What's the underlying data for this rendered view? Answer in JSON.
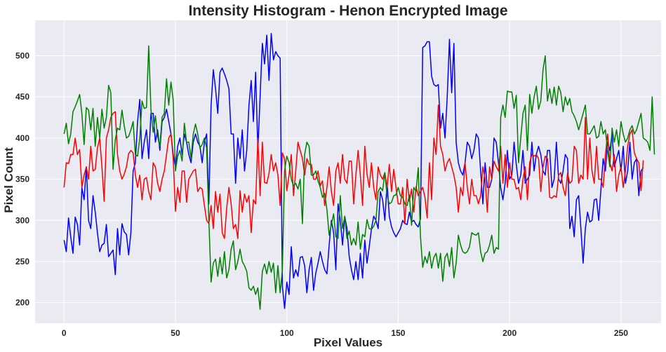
{
  "chart_data": {
    "type": "line",
    "title": "Intensity Histogram - Henon Encrypted Image",
    "xlabel": "Pixel Values",
    "ylabel": "Pixel Count",
    "xlim": [
      -13,
      268
    ],
    "ylim": [
      175,
      543
    ],
    "xticks": [
      0,
      50,
      100,
      150,
      200,
      250
    ],
    "yticks": [
      200,
      250,
      300,
      350,
      400,
      450,
      500
    ],
    "grid": true,
    "background": "#EAEAF2",
    "series": [
      {
        "color": "#0000FF",
        "values": [
          276,
          262,
          303,
          280,
          260,
          304,
          295,
          270,
          340,
          325,
          365,
          300,
          290,
          330,
          310,
          285,
          262,
          270,
          272,
          295,
          256,
          260,
          264,
          234,
          290,
          258,
          296,
          286,
          283,
          258,
          285,
          360,
          370,
          420,
          447,
          375,
          395,
          410,
          375,
          430,
          430,
          395,
          410,
          385,
          420,
          425,
          435,
          420,
          405,
          380,
          365,
          390,
          400,
          380,
          405,
          395,
          380,
          370,
          395,
          405,
          395,
          390,
          370,
          395,
          405,
          320,
          440,
          483,
          460,
          430,
          480,
          485,
          478,
          470,
          460,
          405,
          405,
          345,
          400,
          375,
          410,
          360,
          385,
          440,
          470,
          420,
          480,
          385,
          450,
          515,
          490,
          525,
          470,
          527,
          495,
          505,
          500,
          497,
          220,
          193,
          225,
          210,
          268,
          230,
          240,
          232,
          255,
          256,
          245,
          212,
          240,
          255,
          215,
          236,
          248,
          262,
          250,
          240,
          235,
          270,
          300,
          285,
          240,
          320,
          300,
          270,
          305,
          290,
          256,
          240,
          228,
          250,
          228,
          260,
          230,
          276,
          248,
          268,
          290,
          305,
          300,
          290,
          335,
          325,
          300,
          345,
          305,
          292,
          285,
          280,
          285,
          290,
          300,
          296,
          295,
          310,
          298,
          300,
          295,
          292,
          302,
          510,
          512,
          517,
          517,
          475,
          465,
          463,
          465,
          412,
          430,
          400,
          450,
          520,
          455,
          515,
          395,
          370,
          360,
          355,
          370,
          395,
          390,
          375,
          385,
          405,
          400,
          360,
          320,
          370,
          340,
          340,
          350,
          400,
          395,
          370,
          340,
          325,
          345,
          385,
          350,
          355,
          395,
          368,
          345,
          355,
          385,
          345,
          350,
          355,
          395,
          360,
          380,
          390,
          380,
          360,
          355,
          385,
          385,
          340,
          350,
          395,
          350,
          345,
          360,
          380,
          375,
          290,
          305,
          280,
          325,
          330,
          290,
          248,
          290,
          310,
          298,
          300,
          325,
          326,
          300,
          338,
          375,
          360,
          395,
          385,
          405,
          365,
          375,
          385,
          360,
          390,
          345,
          360,
          395,
          350,
          370,
          375,
          330,
          360,
          364
        ]
      },
      {
        "color": "#FF0000",
        "values": [
          340,
          370,
          369,
          380,
          380,
          400,
          380,
          386,
          340,
          355,
          365,
          350,
          390,
          360,
          362,
          388,
          400,
          365,
          323,
          400,
          410,
          425,
          430,
          432,
          380,
          360,
          350,
          356,
          365,
          381,
          385,
          382,
          355,
          340,
          355,
          325,
          350,
          352,
          335,
          325,
          370,
          365,
          345,
          335,
          350,
          360,
          380,
          400,
          405,
          375,
          311,
          340,
          322,
          360,
          360,
          322,
          350,
          355,
          360,
          362,
          335,
          340,
          338,
          318,
          300,
          296,
          318,
          290,
          335,
          310,
          332,
          285,
          278,
          315,
          340,
          320,
          290,
          295,
          278,
          336,
          310,
          332,
          322,
          330,
          285,
          325,
          320,
          400,
          330,
          395,
          346,
          345,
          357,
          380,
          360,
          370,
          355,
          318,
          382,
          375,
          336,
          355,
          380,
          330,
          360,
          395,
          385,
          375,
          355,
          375,
          368,
          368,
          350,
          350,
          360,
          342,
          348,
          318,
          340,
          365,
          335,
          318,
          360,
          370,
          345,
          380,
          350,
          345,
          372,
          372,
          320,
          355,
          385,
          355,
          318,
          390,
          356,
          340,
          370,
          340,
          325,
          365,
          355,
          350,
          358,
          340,
          368,
          335,
          362,
          340,
          320,
          320,
          340,
          296,
          350,
          323,
          338,
          310,
          341,
          330,
          335,
          340,
          328,
          303,
          370,
          325,
          400,
          380,
          440,
          390,
          380,
          360,
          370,
          375,
          365,
          355,
          340,
          310,
          340,
          330,
          370,
          340,
          320,
          350,
          330,
          330,
          320,
          330,
          365,
          350,
          310,
          365,
          350,
          372,
          365,
          360,
          390,
          345,
          380,
          340,
          370,
          350,
          350,
          338,
          340,
          325,
          350,
          365,
          325,
          370,
          380,
          378,
          380,
          375,
          335,
          365,
          378,
          375,
          328,
          327,
          330,
          328,
          355,
          358,
          340,
          330,
          357,
          345,
          348,
          390,
          385,
          345,
          355,
          350,
          425,
          350,
          400,
          360,
          345,
          390,
          350,
          350,
          340,
          380,
          405,
          370,
          360,
          380,
          335,
          355,
          365,
          340,
          360,
          390,
          405,
          410,
          382,
          375,
          370,
          336,
          373
        ]
      },
      {
        "color": "#008000",
        "values": [
          405,
          418,
          393,
          405,
          432,
          438,
          445,
          453,
          430,
          392,
          437,
          434,
          410,
          436,
          390,
          425,
          400,
          435,
          412,
          425,
          464,
          455,
          362,
          398,
          412,
          410,
          434,
          415,
          400,
          402,
          410,
          420,
          380,
          378,
          400,
          445,
          436,
          437,
          512,
          435,
          407,
          427,
          402,
          390,
          425,
          430,
          472,
          440,
          468,
          446,
          360,
          378,
          385,
          372,
          418,
          395,
          395,
          375,
          405,
          417,
          405,
          388,
          392,
          400,
          388,
          300,
          225,
          248,
          253,
          232,
          255,
          235,
          262,
          230,
          240,
          265,
          275,
          240,
          250,
          265,
          250,
          245,
          238,
          218,
          215,
          220,
          210,
          218,
          192,
          238,
          247,
          235,
          250,
          237,
          248,
          212,
          245,
          212,
          240,
          360,
          378,
          370,
          350,
          342,
          345,
          338,
          350,
          296,
          380,
          395,
          390,
          355,
          355,
          360,
          348,
          340,
          328,
          333,
          313,
          282,
          295,
          308,
          280,
          278,
          330,
          290,
          305,
          278,
          287,
          270,
          278,
          270,
          298,
          265,
          283,
          280,
          301,
          290,
          289,
          293,
          300,
          335,
          340,
          336,
          358,
          330,
          320,
          322,
          330,
          331,
          340,
          330,
          328,
          320,
          318,
          331,
          294,
          340,
          335,
          364,
          280,
          243,
          256,
          248,
          262,
          242,
          255,
          260,
          242,
          260,
          226,
          255,
          260,
          244,
          267,
          230,
          248,
          282,
          270,
          262,
          260,
          262,
          268,
          285,
          283,
          282,
          285,
          262,
          250,
          260,
          262,
          270,
          282,
          260,
          267,
          265,
          425,
          440,
          425,
          457,
          456,
          456,
          436,
          452,
          370,
          400,
          430,
          440,
          385,
          453,
          430,
          450,
          463,
          435,
          445,
          483,
          500,
          445,
          460,
          442,
          462,
          440,
          463,
          455,
          432,
          450,
          440,
          448,
          432,
          427,
          420,
          410,
          420,
          430,
          440,
          405,
          405,
          410,
          415,
          400,
          402,
          420,
          405,
          410,
          385,
          365,
          412,
          395,
          410,
          390,
          420,
          405,
          395,
          400,
          410,
          415,
          405,
          410,
          420,
          430,
          400,
          398,
          395,
          385,
          450,
          380
        ]
      }
    ]
  }
}
